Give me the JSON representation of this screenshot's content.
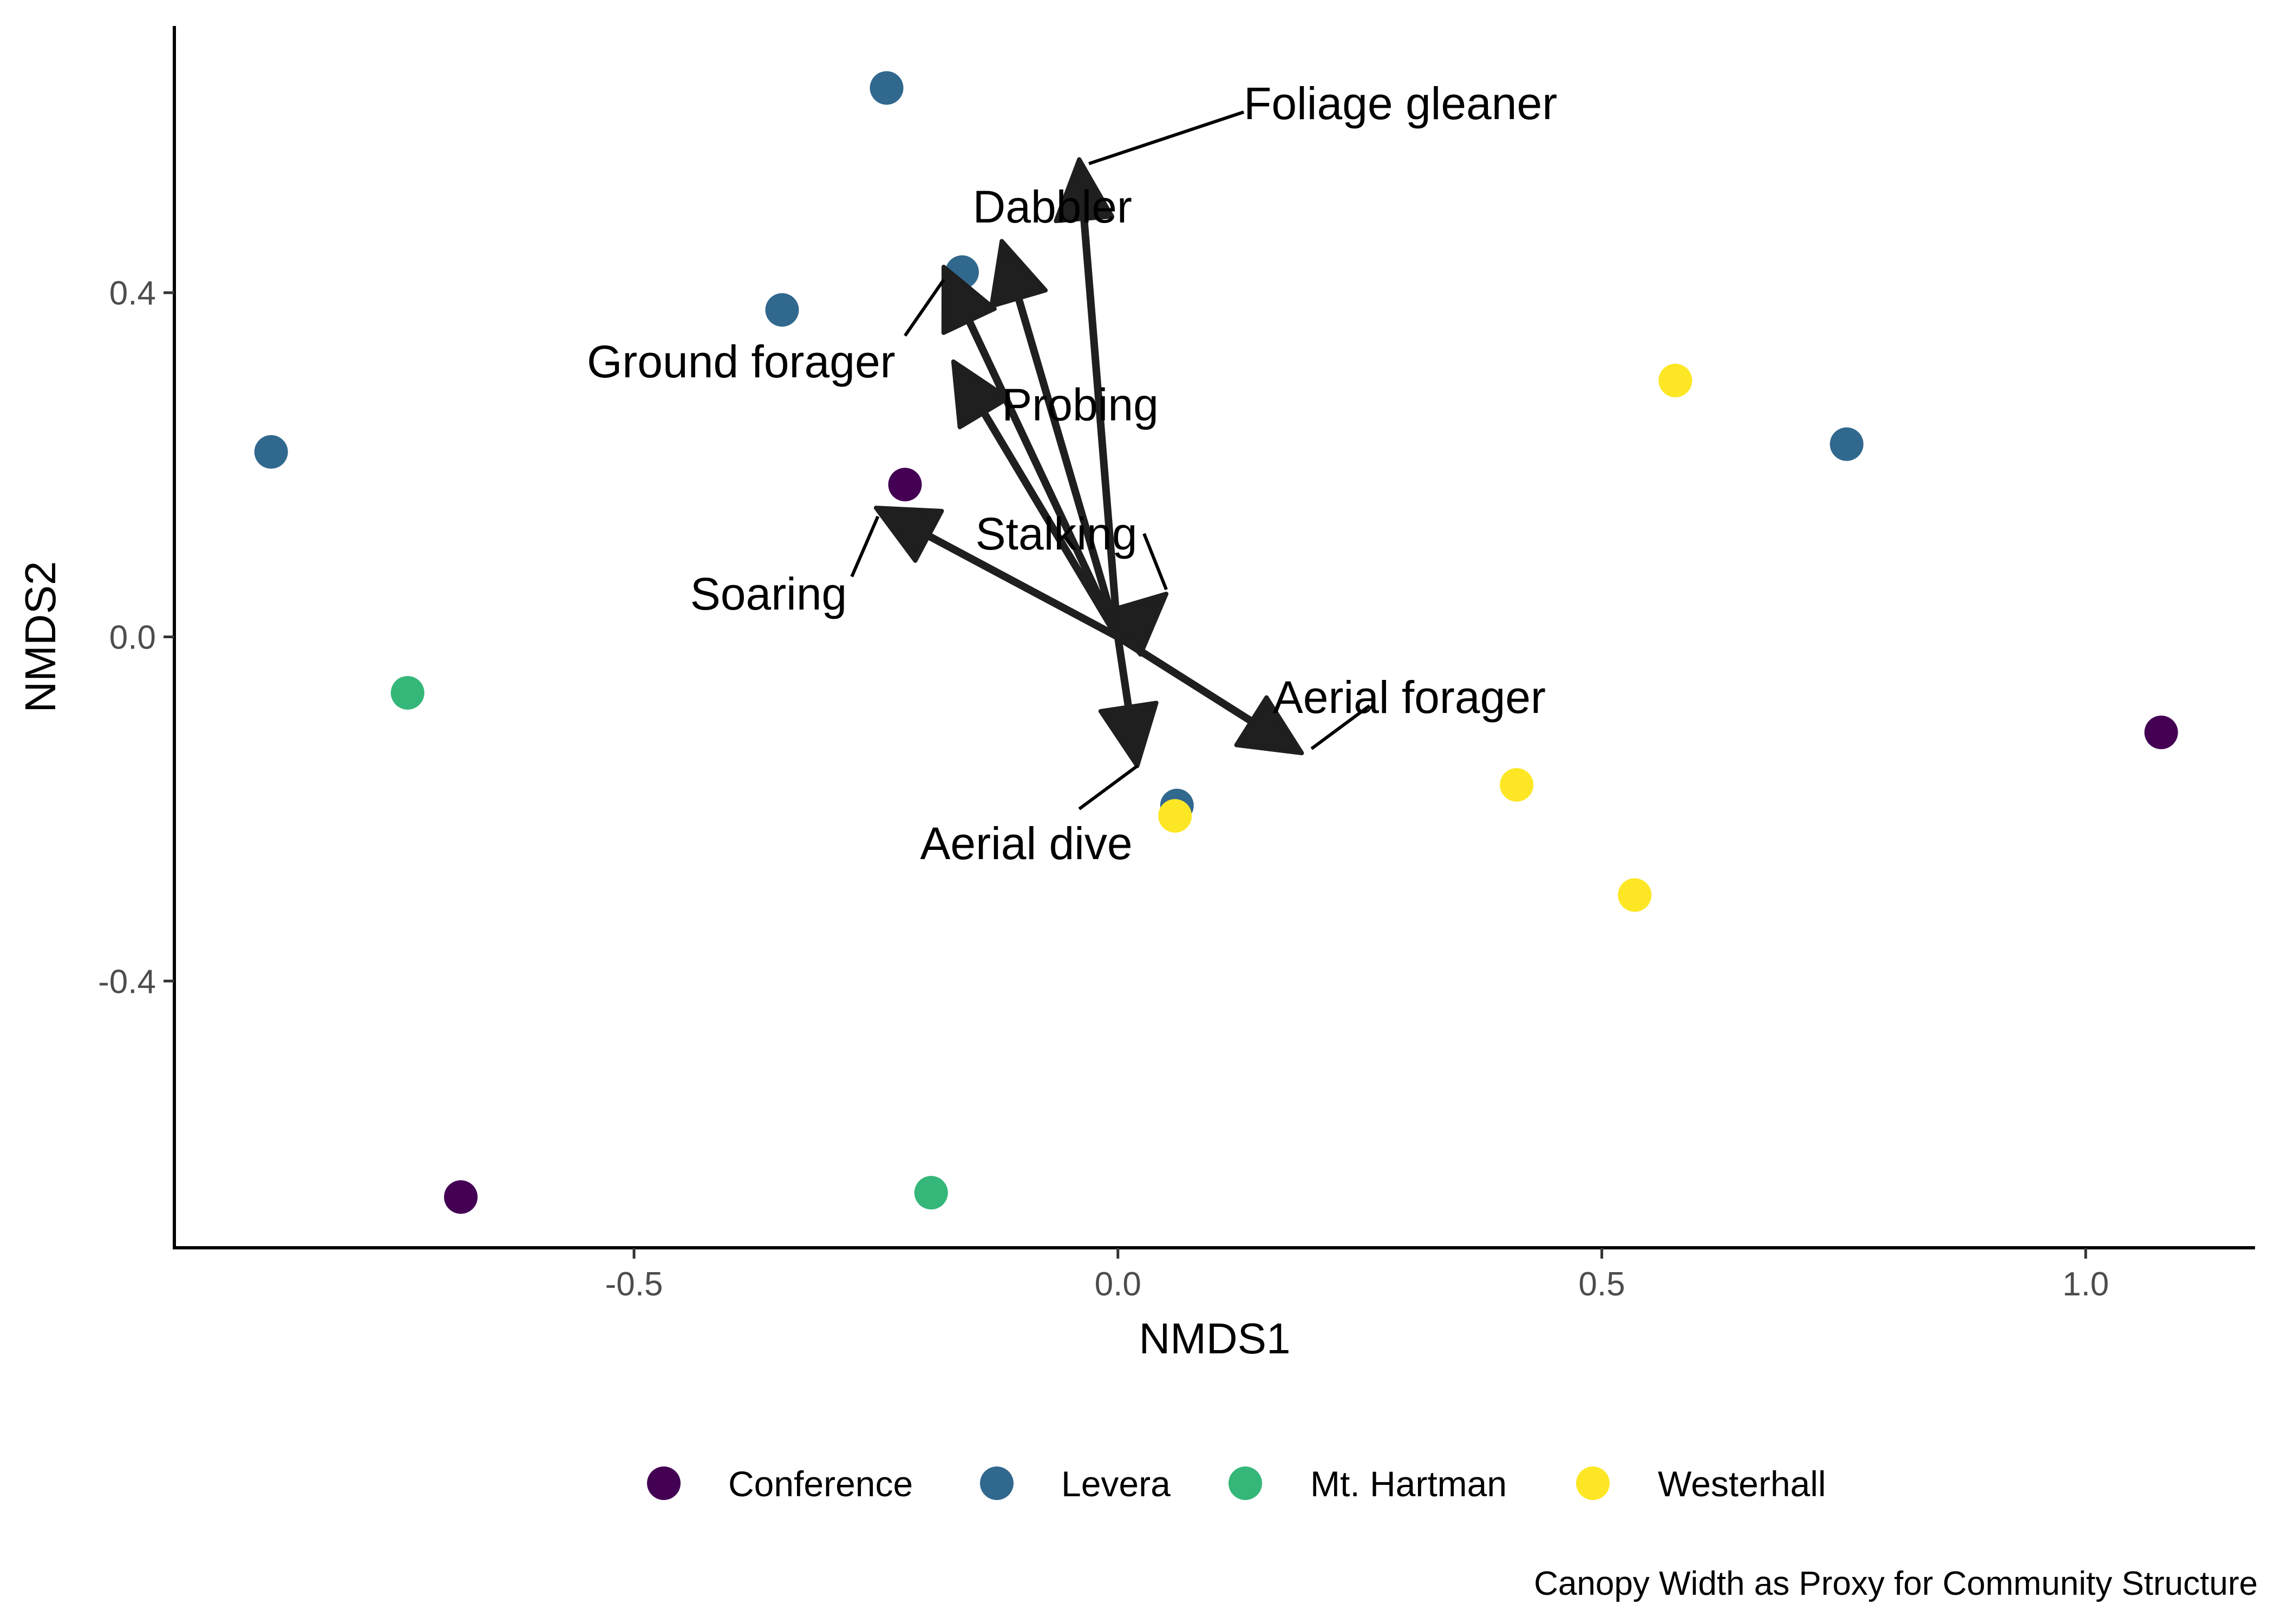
{
  "chart_data": {
    "type": "scatter",
    "title": "",
    "caption": "Canopy Width as Proxy for Community Structure",
    "xlabel": "NMDS1",
    "ylabel": "NMDS2",
    "xlim": [
      -0.975,
      1.175
    ],
    "ylim": [
      -0.71,
      0.71
    ],
    "x_ticks": [
      -0.5,
      0.0,
      0.5,
      1.0
    ],
    "x_tick_labels": [
      "-0.5",
      "0.0",
      "0.5",
      "1.0"
    ],
    "y_ticks": [
      -0.4,
      0.0,
      0.4
    ],
    "y_tick_labels": [
      "-0.4",
      "0.0",
      "0.4"
    ],
    "grid": false,
    "legend_position": "bottom",
    "groups": [
      {
        "name": "Conference",
        "color": "#440154"
      },
      {
        "name": "Levera",
        "color": "#31688E"
      },
      {
        "name": "Mt. Hartman",
        "color": "#35B779"
      },
      {
        "name": "Westerhall",
        "color": "#FDE725"
      }
    ],
    "points": [
      {
        "x": -0.22,
        "y": 0.177,
        "group": "Conference"
      },
      {
        "x": -0.679,
        "y": -0.651,
        "group": "Conference"
      },
      {
        "x": 1.078,
        "y": -0.111,
        "group": "Conference"
      },
      {
        "x": -0.239,
        "y": 0.638,
        "group": "Levera"
      },
      {
        "x": -0.161,
        "y": 0.424,
        "group": "Levera"
      },
      {
        "x": -0.347,
        "y": 0.38,
        "group": "Levera"
      },
      {
        "x": -0.875,
        "y": 0.215,
        "group": "Levera"
      },
      {
        "x": 0.753,
        "y": 0.224,
        "group": "Levera"
      },
      {
        "x": 0.061,
        "y": -0.196,
        "group": "Levera"
      },
      {
        "x": -0.734,
        "y": -0.065,
        "group": "Mt. Hartman"
      },
      {
        "x": -0.193,
        "y": -0.646,
        "group": "Mt. Hartman"
      },
      {
        "x": 0.576,
        "y": 0.298,
        "group": "Westerhall"
      },
      {
        "x": 0.412,
        "y": -0.172,
        "group": "Westerhall"
      },
      {
        "x": 0.534,
        "y": -0.3,
        "group": "Westerhall"
      },
      {
        "x": 0.059,
        "y": -0.208,
        "group": "Westerhall"
      }
    ],
    "vectors": [
      {
        "name": "Foliage gleaner",
        "x": -0.04,
        "y": 0.555
      },
      {
        "name": "Dabbler",
        "x": -0.12,
        "y": 0.46
      },
      {
        "name": "Ground forager",
        "x": -0.18,
        "y": 0.43
      },
      {
        "name": "Probing",
        "x": -0.17,
        "y": 0.32
      },
      {
        "name": "Stalking",
        "x": 0.05,
        "y": 0.05
      },
      {
        "name": "Soaring",
        "x": -0.25,
        "y": 0.15
      },
      {
        "name": "Aerial forager",
        "x": 0.19,
        "y": -0.135
      },
      {
        "name": "Aerial dive",
        "x": 0.02,
        "y": -0.15
      }
    ],
    "vector_labels": [
      {
        "text": "Foliage gleaner",
        "x": 0.13,
        "y": 0.62,
        "anchor": "start",
        "leader": [
          0.13,
          0.61,
          -0.03,
          0.55
        ]
      },
      {
        "text": "Dabbler",
        "x": -0.15,
        "y": 0.5,
        "anchor": "start"
      },
      {
        "text": "Ground forager",
        "x": -0.23,
        "y": 0.32,
        "anchor": "end",
        "leader": [
          -0.22,
          0.35,
          -0.18,
          0.415
        ]
      },
      {
        "text": "Probing",
        "x": -0.12,
        "y": 0.27,
        "anchor": "start"
      },
      {
        "text": "Stalking",
        "x": 0.02,
        "y": 0.12,
        "anchor": "end",
        "leader": [
          0.027,
          0.12,
          0.05,
          0.055
        ]
      },
      {
        "text": "Soaring",
        "x": -0.28,
        "y": 0.05,
        "anchor": "end",
        "leader": [
          -0.275,
          0.07,
          -0.248,
          0.14
        ]
      },
      {
        "text": "Aerial forager",
        "x": 0.16,
        "y": -0.07,
        "anchor": "start",
        "leader": [
          0.26,
          -0.08,
          0.2,
          -0.13
        ]
      },
      {
        "text": "Aerial dive",
        "x": 0.015,
        "y": -0.24,
        "anchor": "end",
        "leader": [
          -0.04,
          -0.2,
          0.02,
          -0.15
        ]
      }
    ]
  }
}
